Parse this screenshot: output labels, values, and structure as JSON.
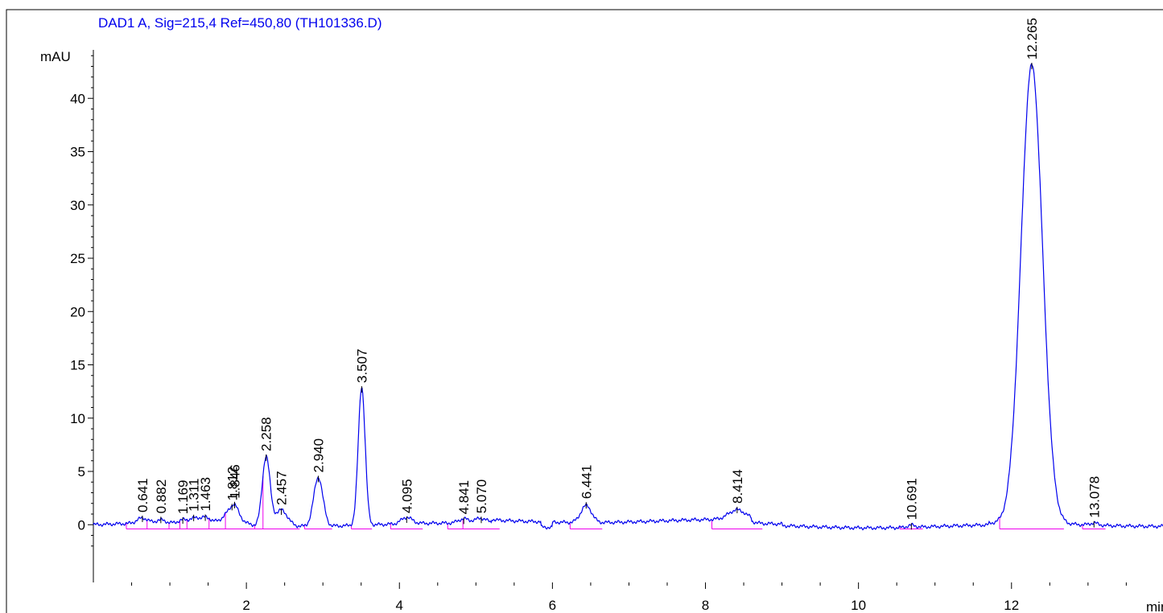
{
  "chart_data": {
    "type": "line",
    "title": "DAD1 A, Sig=215,4 Ref=450,80 (TH101336.D)",
    "ylabel": "mAU",
    "xlabel": "min",
    "xlim": [
      0,
      13.98
    ],
    "ylim": [
      -3,
      45
    ],
    "x_ticks": [
      2,
      4,
      6,
      8,
      10,
      12
    ],
    "y_ticks": [
      0,
      5,
      10,
      15,
      20,
      25,
      30,
      35,
      40
    ],
    "grid": false,
    "colors": {
      "signal": "#0000ee",
      "baseline": "#ee00ee",
      "labels": "#000000",
      "title": "#0000ee"
    },
    "peaks": [
      {
        "rt": 0.641,
        "label": "0.641",
        "height": 0.5,
        "width": 0.07
      },
      {
        "rt": 0.882,
        "label": "0.882",
        "height": 0.3,
        "width": 0.06
      },
      {
        "rt": 1.169,
        "label": "1.169",
        "height": 0.3,
        "width": 0.06
      },
      {
        "rt": 1.311,
        "label": "1.311",
        "height": 0.4,
        "width": 0.06
      },
      {
        "rt": 1.463,
        "label": "1.463",
        "height": 0.6,
        "width": 0.08
      },
      {
        "rt": 1.812,
        "label": "1.812",
        "height": 1.4,
        "width": 0.1
      },
      {
        "rt": 1.846,
        "label": "1.846",
        "height": 0.6,
        "width": 0.04
      },
      {
        "rt": 2.258,
        "label": "2.258",
        "height": 6.5,
        "width": 0.05
      },
      {
        "rt": 2.457,
        "label": "2.457",
        "height": 1.5,
        "width": 0.08
      },
      {
        "rt": 2.94,
        "label": "2.940",
        "height": 4.6,
        "width": 0.06
      },
      {
        "rt": 3.507,
        "label": "3.507",
        "height": 13.0,
        "width": 0.045
      },
      {
        "rt": 4.095,
        "label": "4.095",
        "height": 0.6,
        "width": 0.07
      },
      {
        "rt": 4.841,
        "label": "4.841",
        "height": 0.4,
        "width": 0.07
      },
      {
        "rt": 5.07,
        "label": "5.070",
        "height": 0.5,
        "width": 0.08
      },
      {
        "rt": 6.441,
        "label": "6.441",
        "height": 1.6,
        "width": 0.07
      },
      {
        "rt": 8.414,
        "label": "8.414",
        "height": 0.9,
        "width": 0.11
      },
      {
        "rt": 10.691,
        "label": "10.691",
        "height": 0.2,
        "width": 0.05
      },
      {
        "rt": 12.265,
        "label": "12.265",
        "height": 43.0,
        "width": 0.14
      },
      {
        "rt": 13.078,
        "label": "13.078",
        "height": 0.2,
        "width": 0.05
      }
    ]
  }
}
